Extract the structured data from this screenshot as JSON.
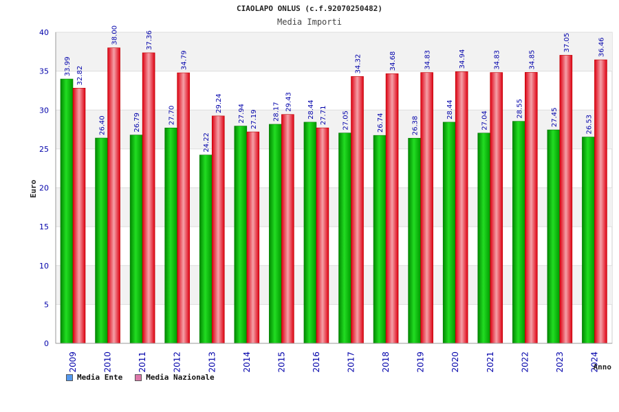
{
  "chart_data": {
    "type": "bar",
    "title": "CIAOLAPO ONLUS (c.f.92070250482)",
    "subtitle": "Media Importi",
    "xlabel": "Anno",
    "ylabel": "Euro",
    "ylim": [
      0,
      40
    ],
    "yticks": [
      0,
      5,
      10,
      15,
      20,
      25,
      30,
      35,
      40
    ],
    "grid": true,
    "legend_placement": "bottom-left",
    "categories": [
      "2009",
      "2010",
      "2011",
      "2012",
      "2013",
      "2014",
      "2015",
      "2016",
      "2017",
      "2018",
      "2019",
      "2020",
      "2021",
      "2022",
      "2023",
      "2024"
    ],
    "series": [
      {
        "name": "Media Ente",
        "bar_color": "#00bb00",
        "legend_color": "#5599ee",
        "values": [
          33.99,
          26.4,
          26.79,
          27.7,
          24.22,
          27.94,
          28.17,
          28.44,
          27.05,
          26.74,
          26.38,
          28.44,
          27.04,
          28.55,
          27.45,
          26.53
        ],
        "labels": [
          "33.99",
          "26.40",
          "26.79",
          "27.70",
          "24.22",
          "27.94",
          "28.17",
          "28.44",
          "27.05",
          "26.74",
          "26.38",
          "28.44",
          "27.04",
          "28.55",
          "27.45",
          "26.53"
        ]
      },
      {
        "name": "Media Nazionale",
        "bar_color": "#ee1122",
        "legend_color": "#dd77aa",
        "values": [
          32.82,
          38.0,
          37.36,
          34.79,
          29.24,
          27.19,
          29.43,
          27.71,
          34.32,
          34.68,
          34.83,
          34.94,
          34.83,
          34.85,
          37.05,
          36.46
        ],
        "labels": [
          "32.82",
          "38.00",
          "37.36",
          "34.79",
          "29.24",
          "27.19",
          "29.43",
          "27.71",
          "34.32",
          "34.68",
          "34.83",
          "34.94",
          "34.83",
          "34.85",
          "37.05",
          "36.46"
        ]
      }
    ]
  }
}
